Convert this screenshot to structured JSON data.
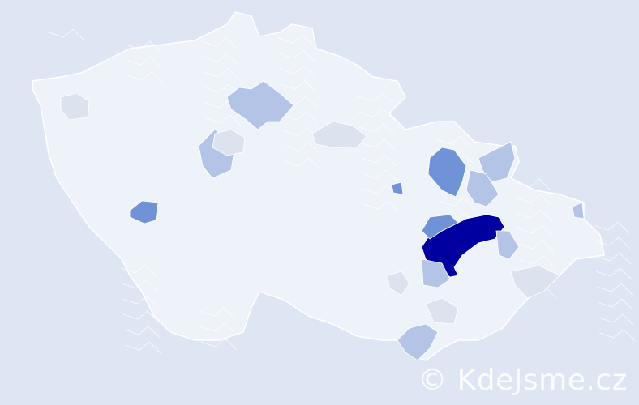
{
  "colors": {
    "background": "#dde6f2",
    "base_region": "#eef2f9",
    "border": "#ffffff",
    "level_pale": "#dde3ee",
    "level_light": "#b4c4e6",
    "level_medium": "#6f93d6",
    "level_dark": "#0000a0"
  },
  "watermark": "© KdeJsme.cz"
}
